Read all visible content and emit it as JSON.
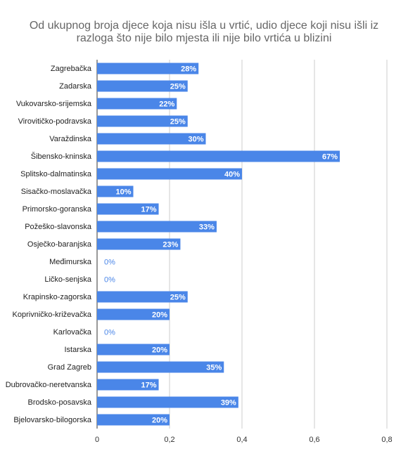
{
  "chart_data": {
    "type": "bar",
    "orientation": "horizontal",
    "title": "Od ukupnog broja djece koja nisu išla u vrtić, udio djece koji nisu išli iz razloga što nije bilo mjesta ili nije bilo vrtića u blizini",
    "categories": [
      "Zagrebačka",
      "Zadarska",
      "Vukovarsko-srijemska",
      "Virovitičko-podravska",
      "Varaždinska",
      "Šibensko-kninska",
      "Splitsko-dalmatinska",
      "Sisačko-moslavačka",
      "Primorsko-goranska",
      "Požeško-slavonska",
      "Osječko-baranjska",
      "Međimurska",
      "Ličko-senjska",
      "Krapinsko-zagorska",
      "Koprivničko-križevačka",
      "Karlovačka",
      "Istarska",
      "Grad Zagreb",
      "Dubrovačko-neretvanska",
      "Brodsko-posavska",
      "Bjelovarsko-bilogorska"
    ],
    "values": [
      0.28,
      0.25,
      0.22,
      0.25,
      0.3,
      0.67,
      0.4,
      0.1,
      0.17,
      0.33,
      0.23,
      0,
      0,
      0.25,
      0.2,
      0,
      0.2,
      0.35,
      0.17,
      0.39,
      0.2
    ],
    "value_labels": [
      "28%",
      "25%",
      "22%",
      "25%",
      "30%",
      "67%",
      "40%",
      "10%",
      "17%",
      "33%",
      "23%",
      "0%",
      "0%",
      "25%",
      "20%",
      "0%",
      "20%",
      "35%",
      "17%",
      "39%",
      "20%"
    ],
    "color": "#4a86e8",
    "xlim": [
      0,
      0.8
    ],
    "xticks": [
      0,
      {
        "value": 0.2,
        "label": "0,2"
      },
      {
        "value": 0.4,
        "label": "0,4"
      },
      {
        "value": 0.6,
        "label": "0,6"
      },
      {
        "value": 0.8,
        "label": "0,8"
      }
    ],
    "grid": true
  }
}
